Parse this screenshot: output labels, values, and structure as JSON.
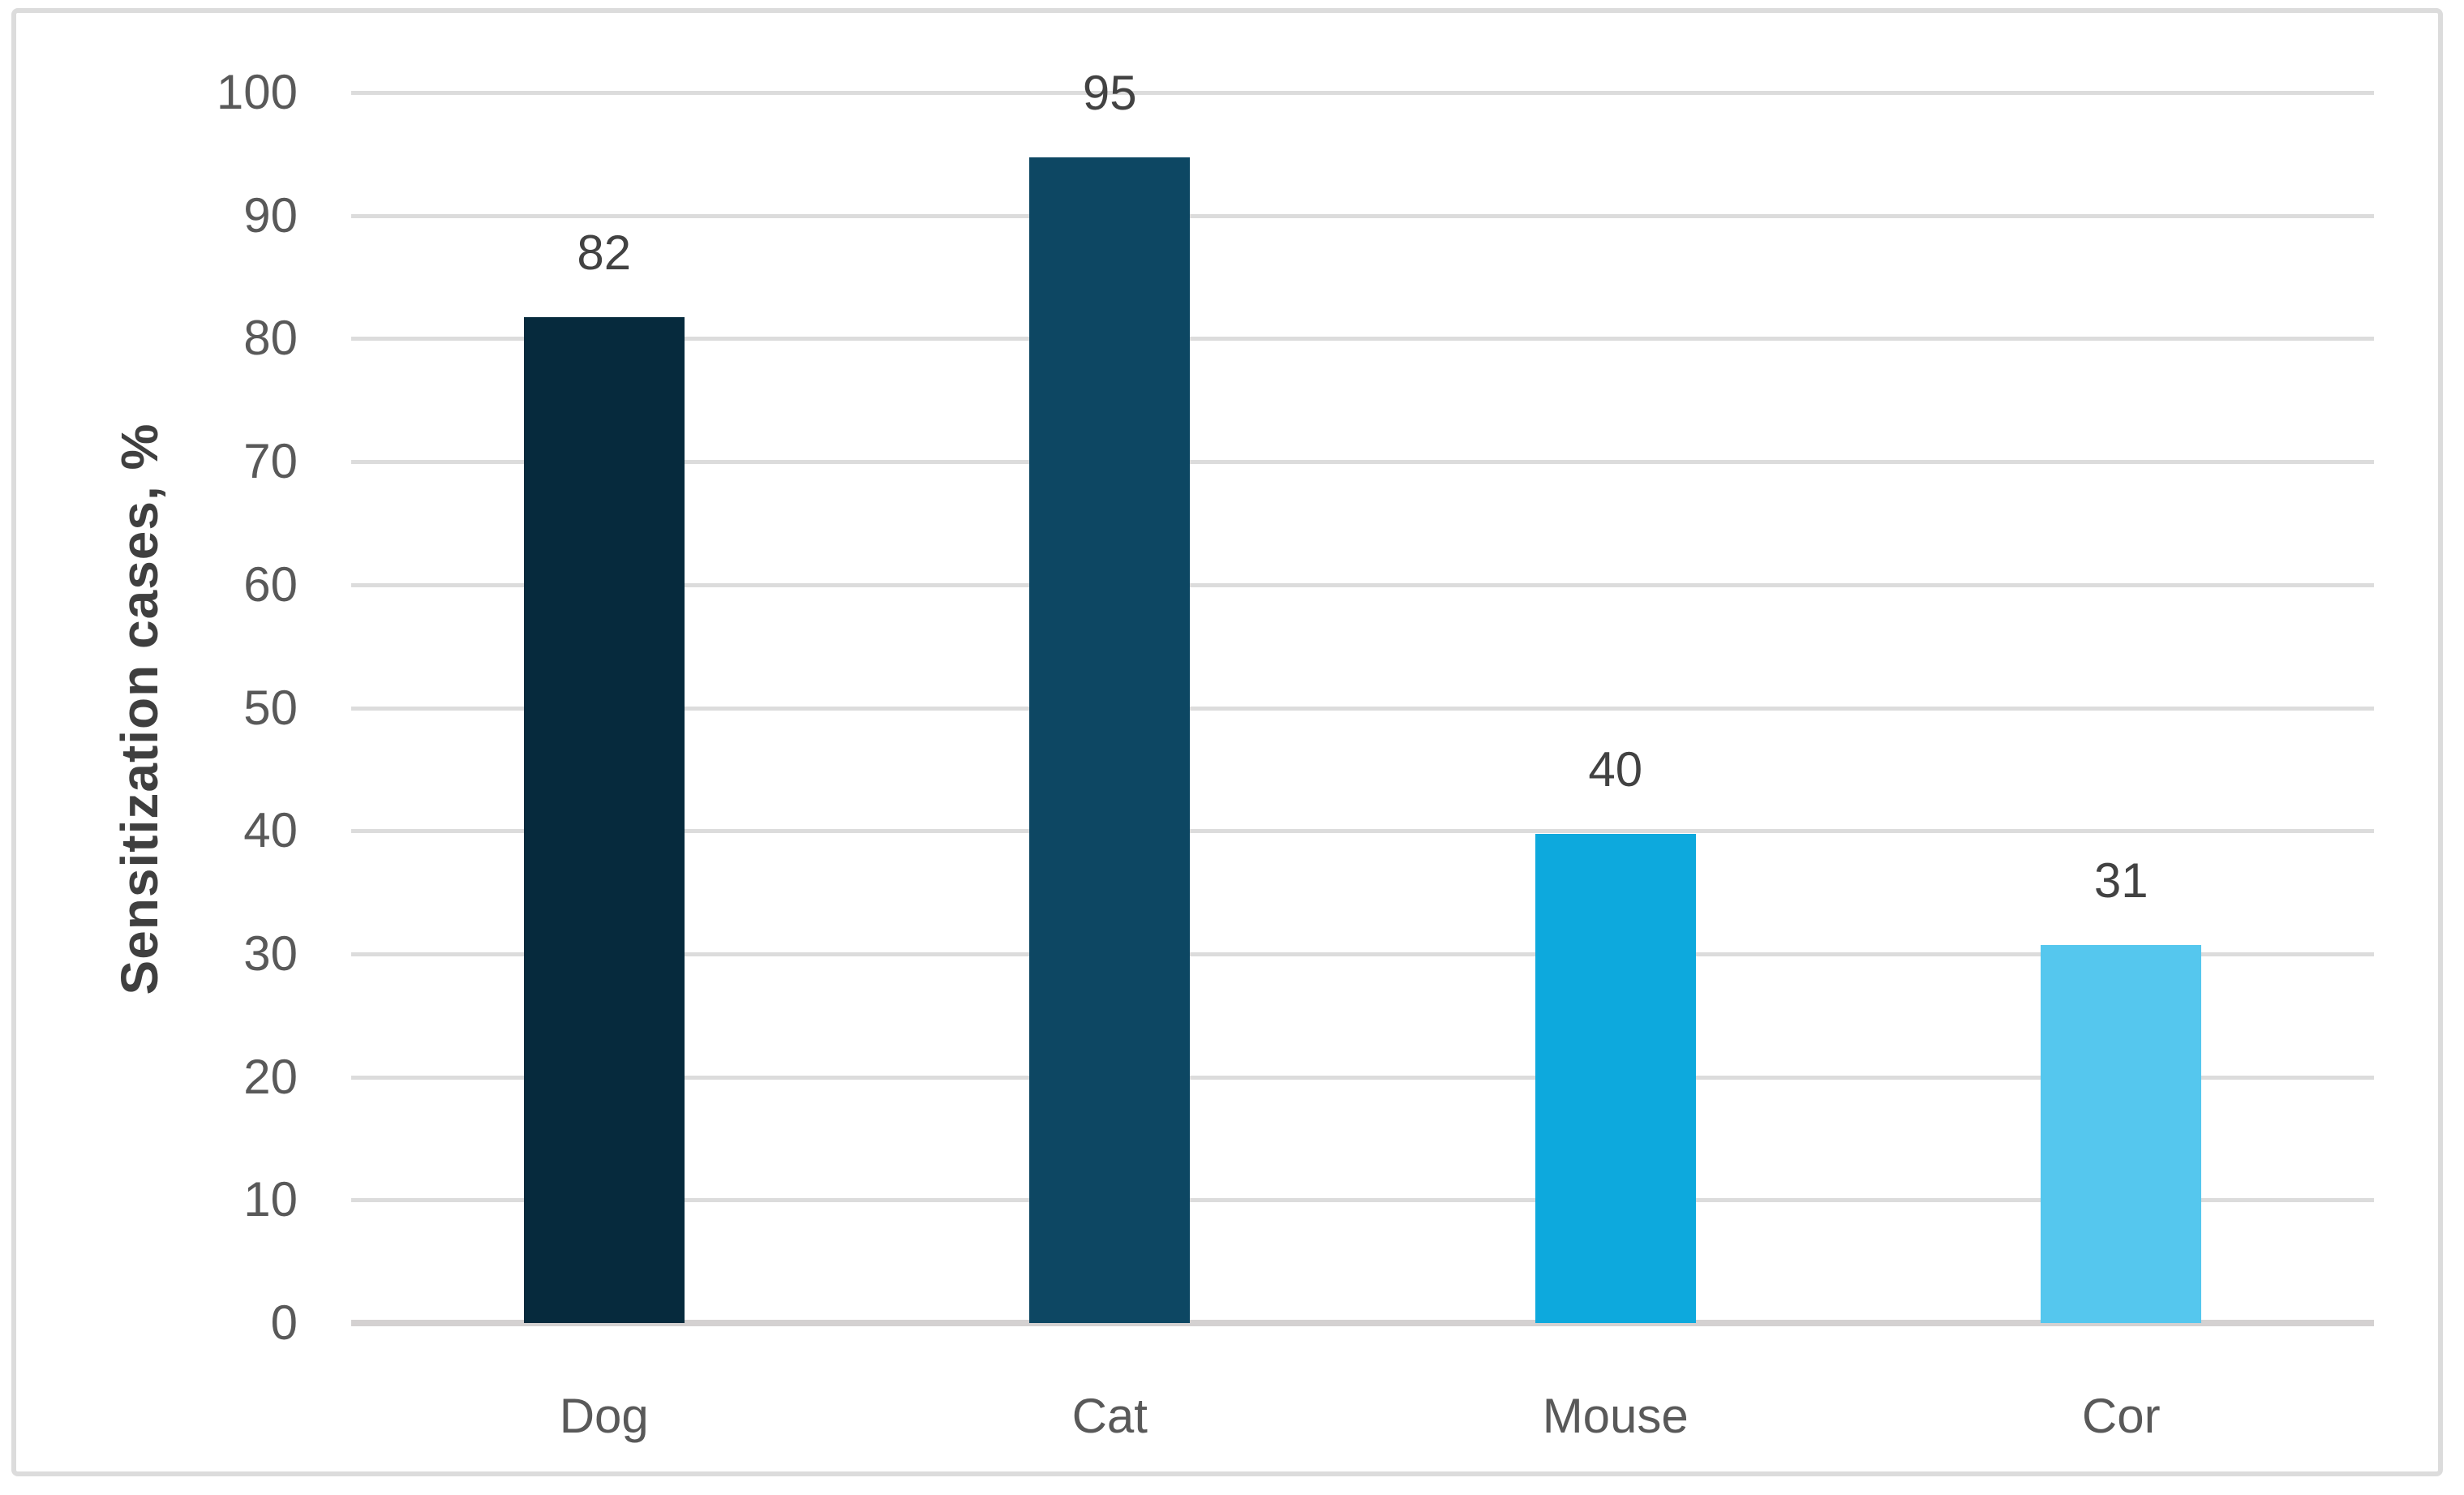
{
  "chart_data": {
    "type": "bar",
    "title": "",
    "categories": [
      "Dog",
      "Cat",
      "Mouse",
      "Cor"
    ],
    "values": [
      82,
      95,
      40,
      31
    ],
    "data_labels": [
      "82",
      "95",
      "40",
      "31"
    ],
    "series": [
      {
        "name": "Sensitization cases",
        "values": [
          82,
          95,
          40,
          31
        ]
      }
    ],
    "xlabel": "",
    "ylabel": "Sensitization cases, %",
    "ylim": [
      0,
      100
    ],
    "yticks": [
      0,
      10,
      20,
      30,
      40,
      50,
      60,
      70,
      80,
      90,
      100
    ],
    "ytick_interval": 10,
    "grid": "horizontal gridlines on, vertical off",
    "legend": "none",
    "bar_colors": [
      "#062a3d",
      "#0d4763",
      "#0da9dd",
      "#55c7ee"
    ]
  },
  "style": {
    "background": "#ffffff",
    "frame_border_color": "#dcdcdc",
    "gridline_color": "#dcdcdc",
    "axis_line_color": "#d4d1d1",
    "tick_label_color": "#595959",
    "data_label_color": "#424242",
    "category_label_color": "#595959",
    "axis_title_color": "#3f3f3f"
  }
}
